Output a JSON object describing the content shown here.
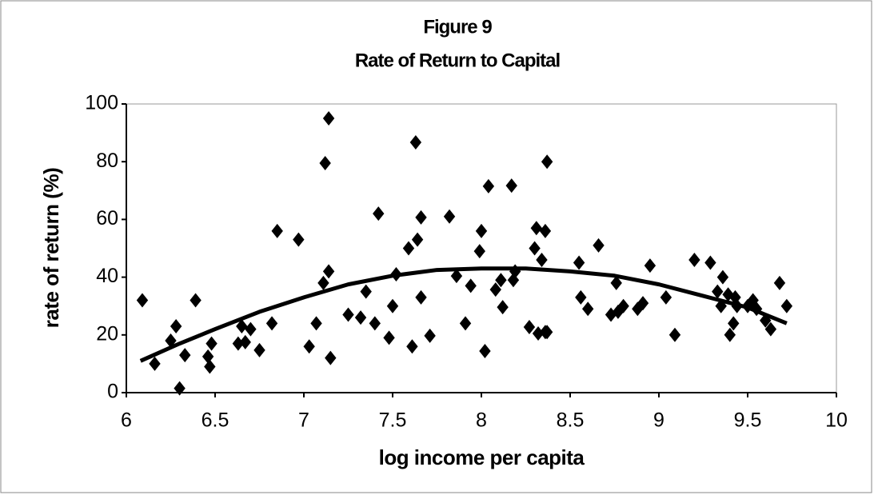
{
  "chart_data": {
    "type": "scatter",
    "title": "Figure 9",
    "subtitle": "Rate of Return to Capital",
    "xlabel": "log income per capita",
    "ylabel": "rate of return (%)",
    "xlim": [
      6,
      10
    ],
    "xticks": [
      6,
      6.5,
      7,
      7.5,
      8,
      8.5,
      9,
      9.5,
      10
    ],
    "ylim": [
      0,
      100
    ],
    "yticks": [
      0,
      20,
      40,
      60,
      80,
      100
    ],
    "series": [
      {
        "color": "#000000",
        "x": [
          6.09,
          6.16,
          6.25,
          6.28,
          6.3,
          6.33,
          6.39,
          6.46,
          6.47,
          6.48,
          6.63,
          6.65,
          6.67,
          6.7,
          6.75,
          6.82,
          6.85,
          6.97,
          7.03,
          7.07,
          7.12,
          7.14,
          7.11,
          7.14,
          7.15,
          7.25,
          7.32,
          7.35,
          7.4,
          7.42,
          7.48,
          7.5,
          7.52,
          7.59,
          7.61,
          7.63,
          7.64,
          7.66,
          7.66,
          7.71,
          7.82,
          7.86,
          7.91,
          7.94,
          7.99,
          8.0,
          8.02,
          8.04,
          8.08,
          8.11,
          8.12,
          8.17,
          8.18,
          8.19,
          8.27,
          8.3,
          8.31,
          8.32,
          8.34,
          8.36,
          8.36,
          8.37,
          8.37,
          8.55,
          8.56,
          8.6,
          8.66,
          8.73,
          8.76,
          8.77,
          8.8,
          8.88,
          8.91,
          8.95,
          9.04,
          9.09,
          9.2,
          9.29,
          9.33,
          9.36,
          9.35,
          9.39,
          9.4,
          9.42,
          9.43,
          9.44,
          9.5,
          9.53,
          9.55,
          9.6,
          9.63,
          9.68,
          9.72
        ],
        "values": [
          32,
          10,
          18,
          23,
          1.5,
          13,
          32,
          12.5,
          9,
          17,
          17,
          23,
          17.5,
          22,
          14.7,
          24,
          56,
          53,
          16,
          24,
          79.5,
          95,
          38,
          42,
          12,
          27,
          26,
          35,
          24,
          62,
          19,
          30,
          41,
          50,
          16,
          86.7,
          53,
          33,
          60.7,
          19.7,
          61,
          40.4,
          24,
          37,
          49,
          56,
          14.4,
          71.5,
          35.7,
          39,
          29.6,
          71.7,
          39,
          42,
          22.7,
          50,
          57,
          20.5,
          46,
          21,
          56,
          80,
          21,
          45,
          33,
          29,
          51,
          27,
          38,
          28,
          30,
          29,
          31,
          44,
          33,
          20,
          46,
          45,
          35,
          40,
          30,
          34,
          20,
          24,
          33,
          30,
          30,
          32,
          29,
          25,
          22,
          38,
          30
        ]
      }
    ],
    "trendline": {
      "color": "#000000",
      "x": [
        6.08,
        6.3,
        6.5,
        6.75,
        7.0,
        7.25,
        7.5,
        7.75,
        8.0,
        8.25,
        8.5,
        8.75,
        9.0,
        9.25,
        9.5,
        9.72
      ],
      "values": [
        11,
        17,
        22,
        28,
        33,
        37.5,
        40.5,
        42.5,
        43,
        43,
        42,
        40.5,
        37.5,
        33.5,
        29.5,
        24
      ]
    }
  }
}
